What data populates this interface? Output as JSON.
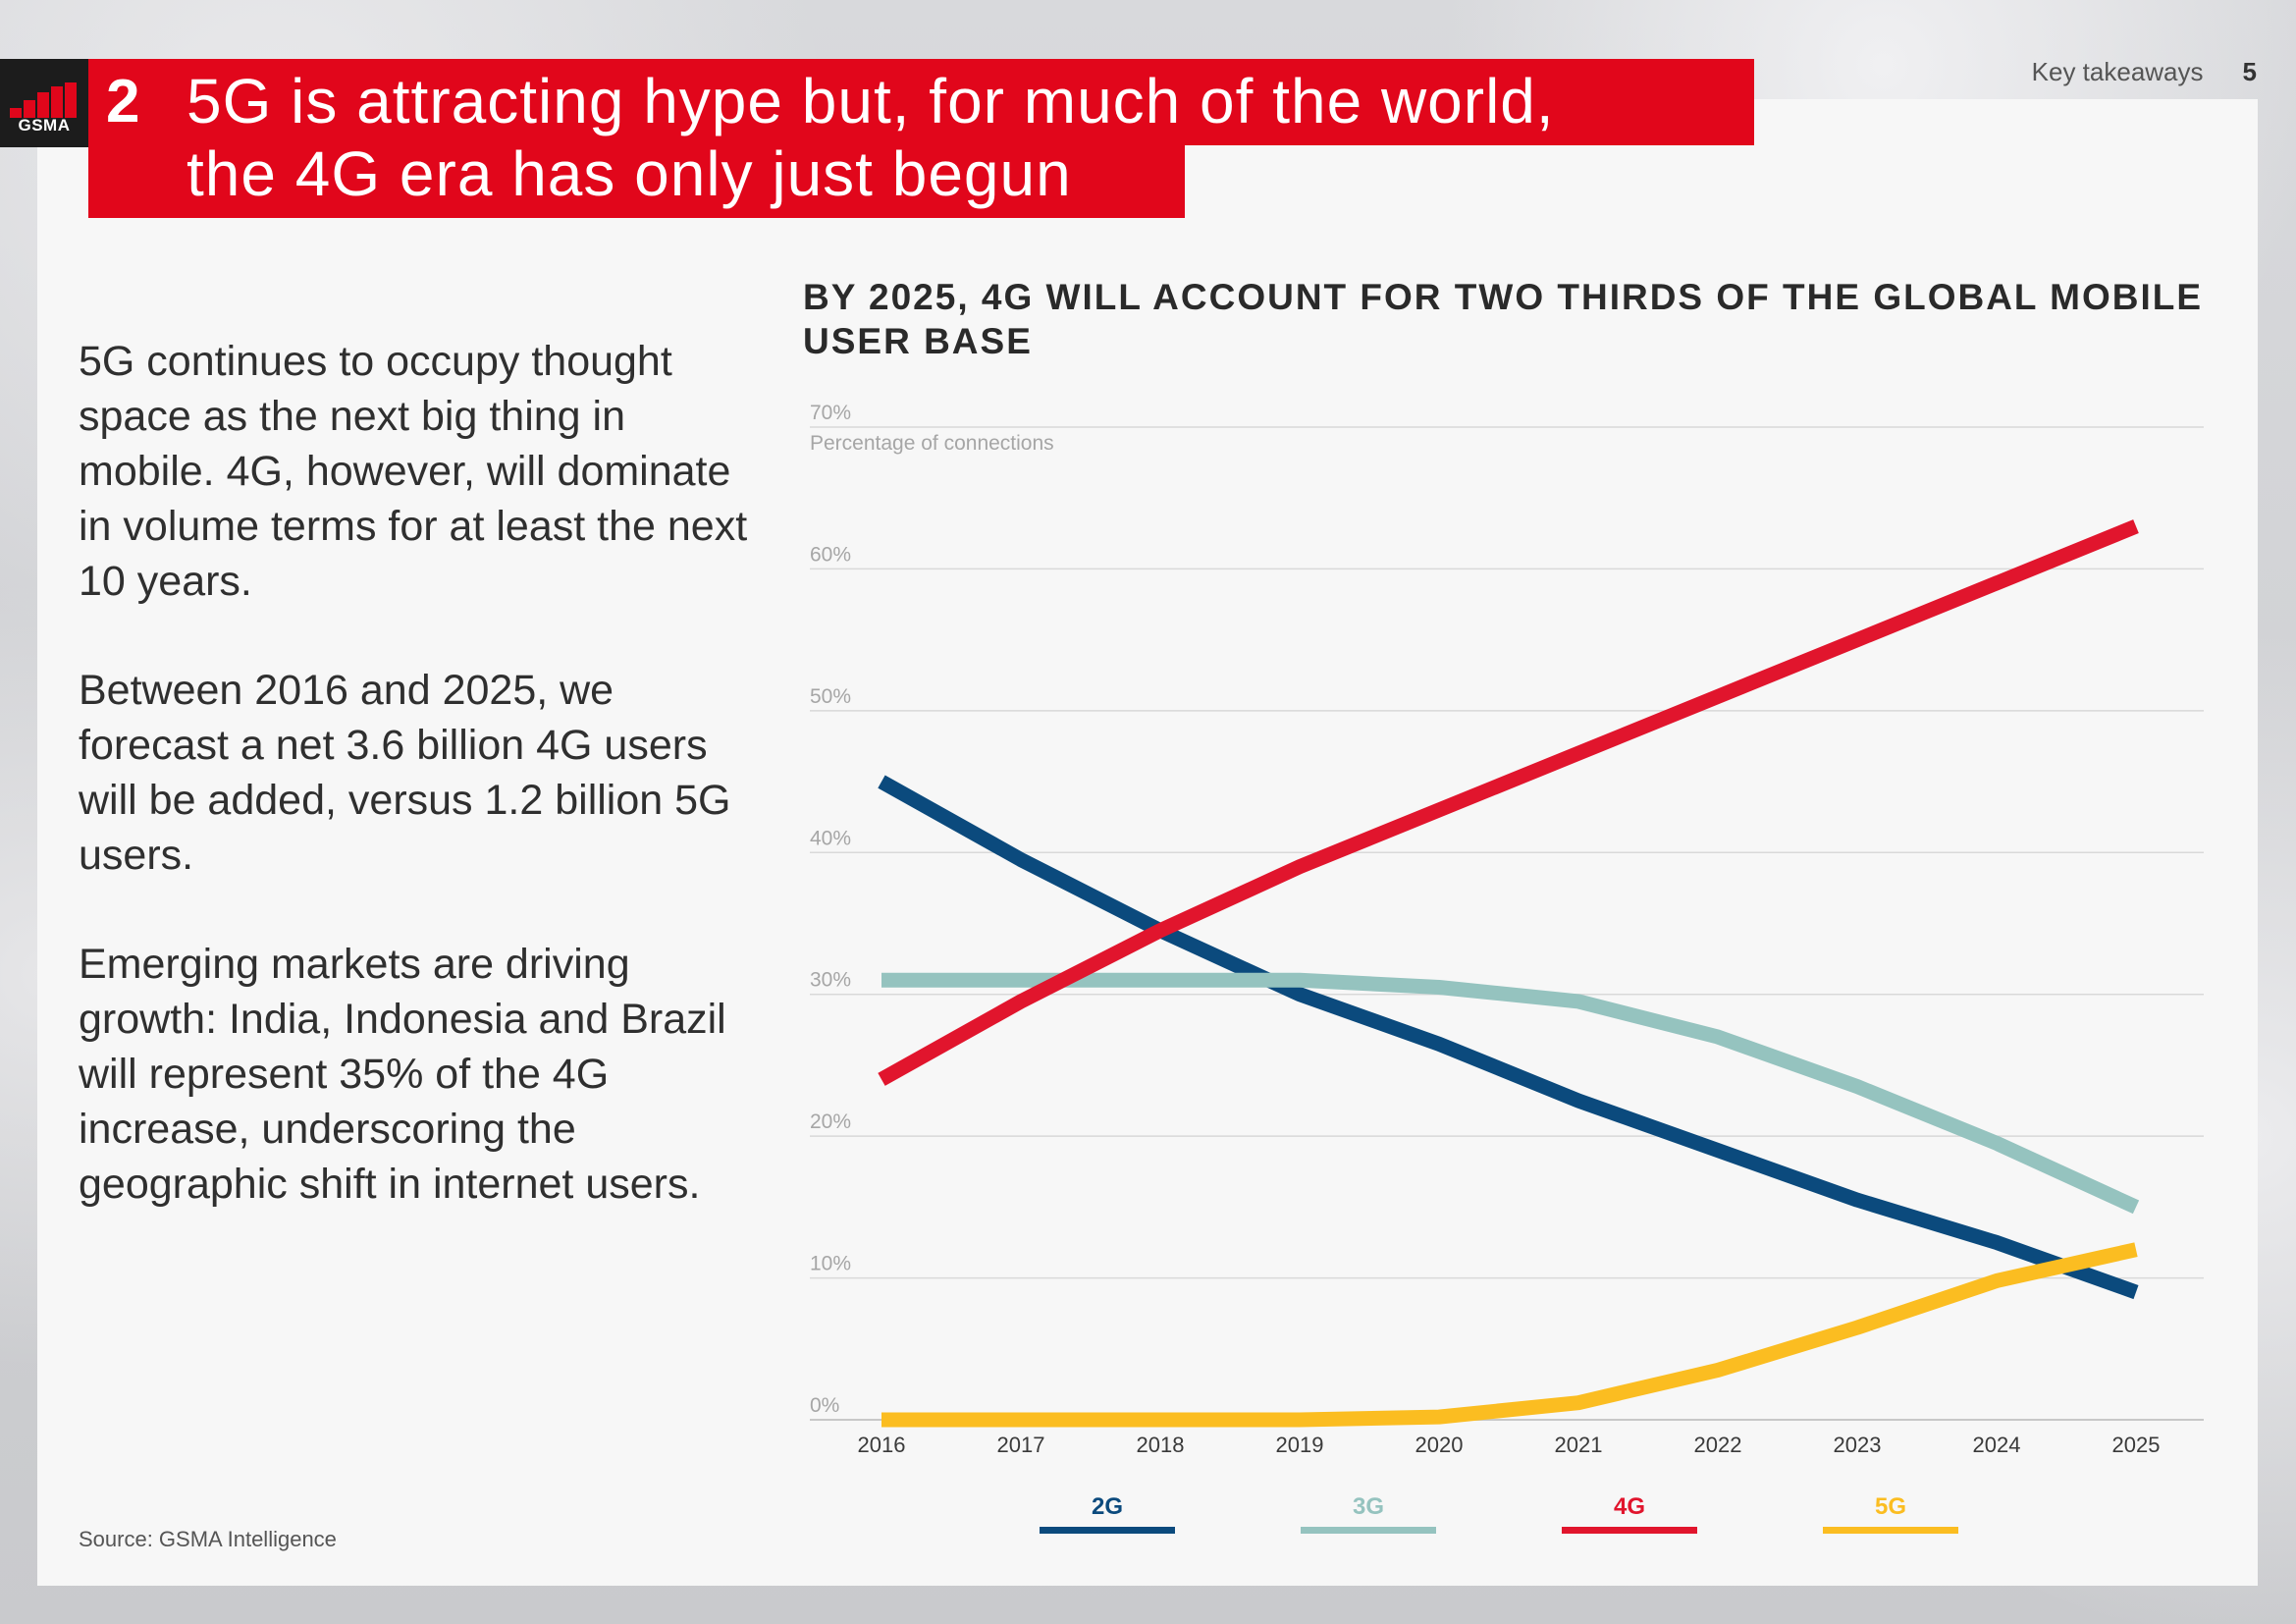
{
  "brand": {
    "logo_text": "GSMA",
    "logo_bar_color": "#e1061b"
  },
  "header": {
    "section_number": "2",
    "title_line1": "5G is attracting hype but, for much of the world,",
    "title_line2": "the 4G era has only just begun",
    "section_label": "Key takeaways",
    "page_number": "5"
  },
  "body": {
    "paragraphs": [
      "5G continues to occupy thought space as the next big thing in mobile. 4G, however, will dominate in volume terms for at least the next 10 years.",
      "Between 2016 and 2025, we forecast a net 3.6 billion 4G users will be added, versus 1.2 billion 5G users.",
      "Emerging markets are driving growth: India, Indonesia and Brazil will represent 35% of the 4G increase, underscoring the geographic shift in internet users."
    ],
    "source": "Source: GSMA Intelligence"
  },
  "chart_data": {
    "type": "line",
    "title": "BY 2025, 4G WILL ACCOUNT FOR TWO THIRDS OF THE GLOBAL MOBILE USER BASE",
    "ylabel": "Percentage of connections",
    "xlabel": "",
    "ylim": [
      0,
      70
    ],
    "yticks": [
      0,
      10,
      20,
      30,
      40,
      50,
      60,
      70
    ],
    "ytick_labels": [
      "0%",
      "10%",
      "20%",
      "30%",
      "40%",
      "50%",
      "60%",
      "70%"
    ],
    "grid": true,
    "legend_position": "bottom",
    "x": [
      "2016",
      "2017",
      "2018",
      "2019",
      "2020",
      "2021",
      "2022",
      "2023",
      "2024",
      "2025"
    ],
    "series": [
      {
        "name": "2G",
        "color": "#0b4a7d",
        "values": [
          45,
          39.5,
          34.5,
          30,
          26.5,
          22.5,
          19,
          15.5,
          12.5,
          9
        ]
      },
      {
        "name": "3G",
        "color": "#95c3bf",
        "values": [
          31,
          31,
          31,
          31,
          30.5,
          29.5,
          27,
          23.5,
          19.5,
          15
        ]
      },
      {
        "name": "4G",
        "color": "#e1152d",
        "values": [
          24,
          29.5,
          34.5,
          39,
          43,
          47,
          51,
          55,
          59,
          63
        ]
      },
      {
        "name": "5G",
        "color": "#fbbd21",
        "values": [
          0,
          0,
          0,
          0,
          0.2,
          1.2,
          3.5,
          6.5,
          9.8,
          12
        ]
      }
    ]
  }
}
